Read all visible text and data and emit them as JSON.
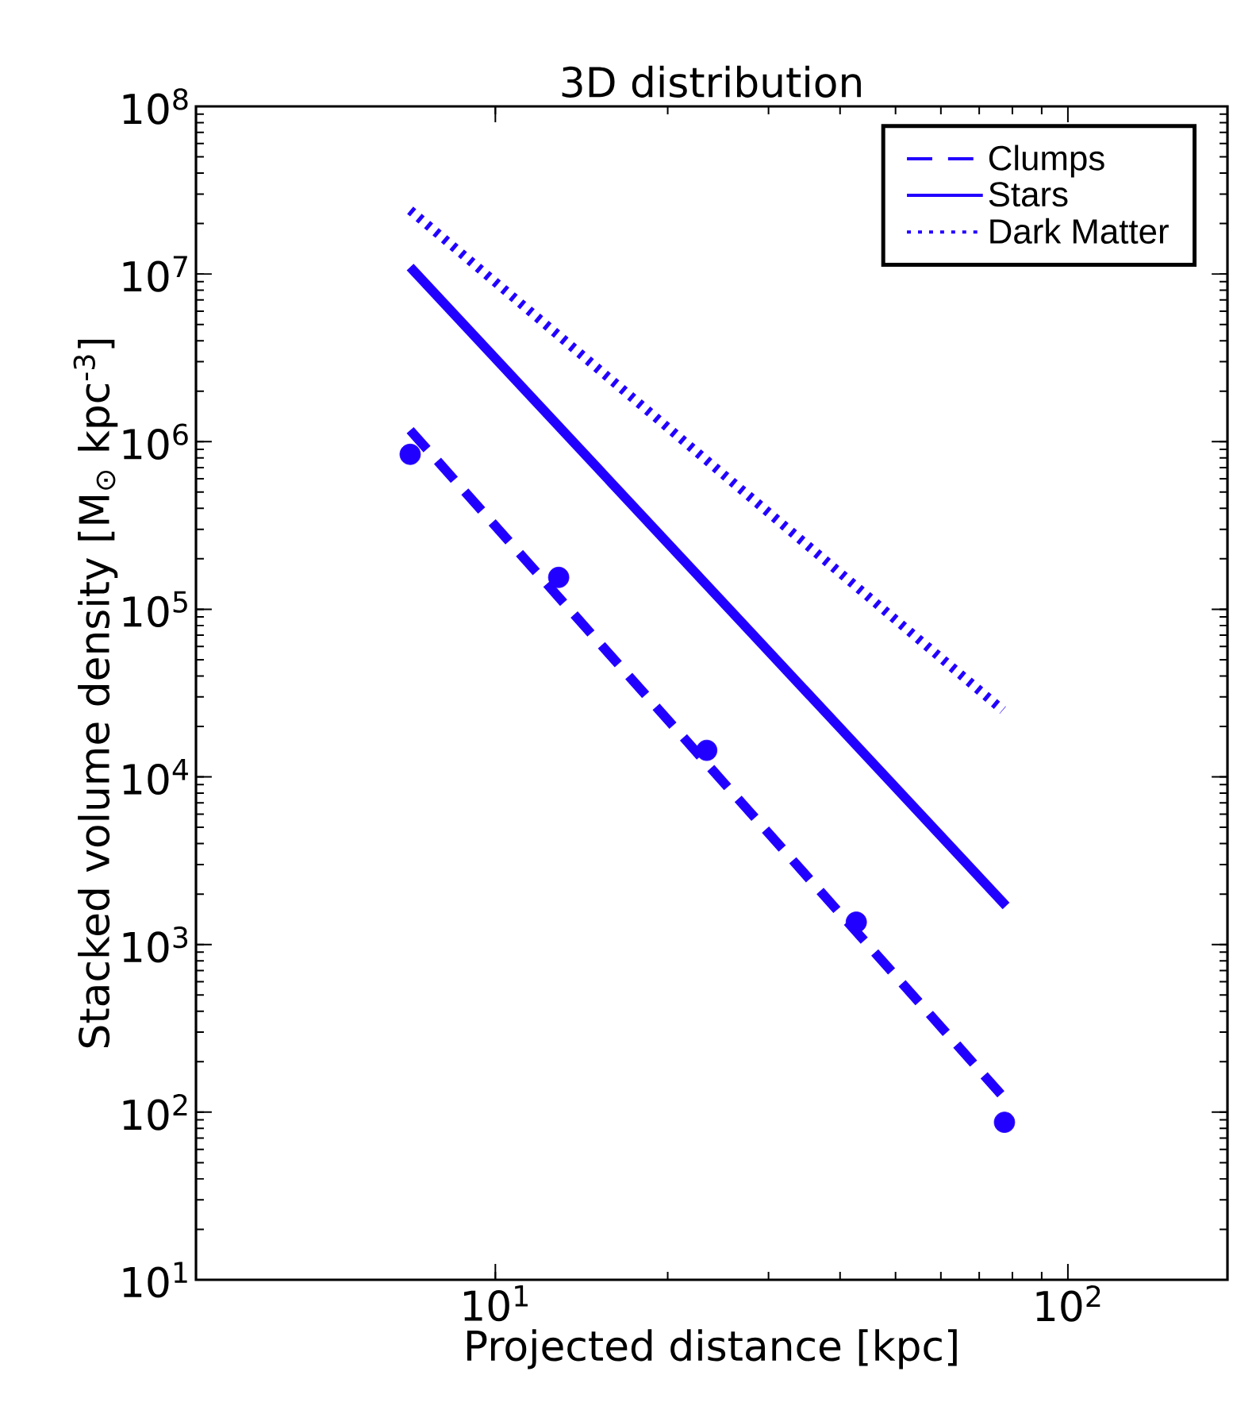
{
  "chart_data": {
    "type": "line",
    "title": "3D distribution",
    "xlabel": "Projected distance [kpc]",
    "ylabel": "Stacked volume density [M$_{⊙}$ kpc$^{-3}$]",
    "log": "xy",
    "xlim": [
      3,
      190
    ],
    "ylim": [
      10,
      100000000
    ],
    "xticks": [
      {
        "value": 10,
        "label": "10$^{1}$"
      },
      {
        "value": 100,
        "label": "10$^{2}$"
      }
    ],
    "yticks": [
      {
        "value": 10,
        "label": "10$^{1}$"
      },
      {
        "value": 100,
        "label": "10$^{2}$"
      },
      {
        "value": 1000,
        "label": "10$^{3}$"
      },
      {
        "value": 10000,
        "label": "10$^{4}$"
      },
      {
        "value": 100000,
        "label": "10$^{5}$"
      },
      {
        "value": 1000000,
        "label": "10$^{6}$"
      },
      {
        "value": 10000000,
        "label": "10$^{7}$"
      },
      {
        "value": 100000000,
        "label": "10$^{8}$"
      }
    ],
    "legend": "top right",
    "series": [
      {
        "type": "scatter",
        "color": "#2200ff",
        "x": [
          7.1,
          12.9,
          23.4,
          42.7,
          77.5
        ],
        "values": [
          840000,
          155000,
          14400,
          1360,
          87
        ]
      },
      {
        "name": "Clumps",
        "color": "#2200ff",
        "line_style": "dashed",
        "x": [
          7.1,
          77.5
        ],
        "values": [
          1170000,
          121
        ]
      },
      {
        "name": "Stars",
        "color": "#2200ff",
        "line_style": "solid",
        "x": [
          7.1,
          78
        ],
        "values": [
          11000000,
          1700
        ]
      },
      {
        "name": "Dark Matter",
        "color": "#2200ff",
        "line_style": "dotted",
        "x": [
          7.1,
          77
        ],
        "values": [
          24000000,
          25000
        ]
      }
    ]
  }
}
